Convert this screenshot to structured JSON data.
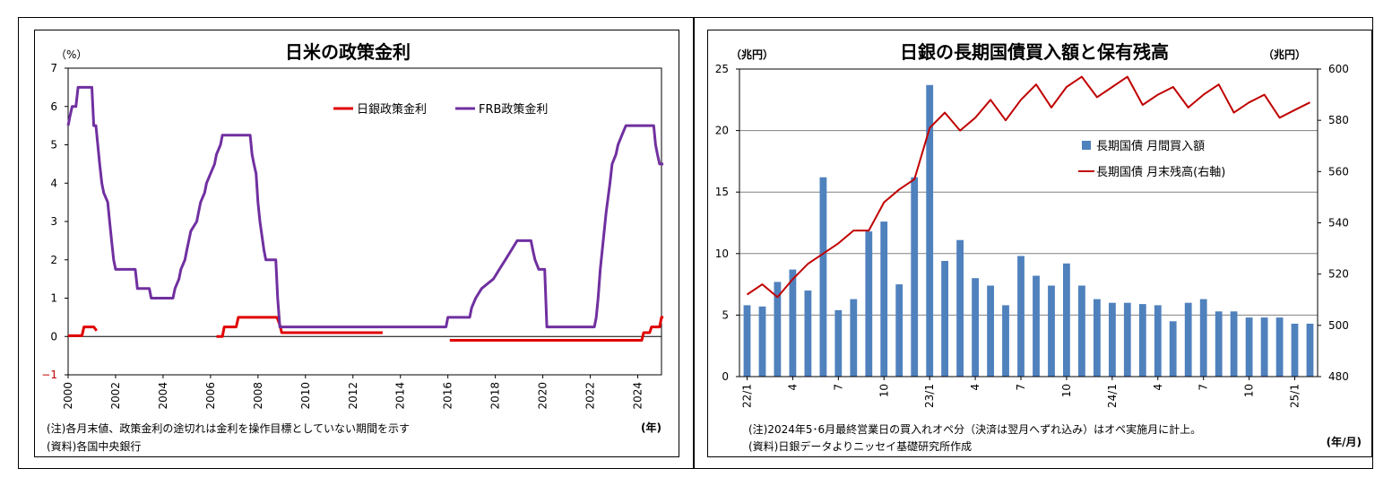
{
  "left_panel": {
    "unit_label": "（%）",
    "x_unit_label": "(年)",
    "note": "(注)各月末値、政策金利の途切れは金利を操作目標としていない期間を示す",
    "source": "(資料)各国中央銀行"
  },
  "right_panel": {
    "left_unit_label": "（兆円）",
    "right_unit_label": "（兆円）",
    "x_unit_label": "(年/月)",
    "note": "(注)2024年5･6月最終営業日の買入れオペ分（決済は翌月へずれ込み）はオペ実施月に計上。",
    "source": "(資料)日銀データよりニッセイ基礎研究所作成"
  },
  "chart_data": [
    {
      "type": "line",
      "title": "日米の政策金利",
      "ylabel": "%",
      "xlabel": "年",
      "xlim": [
        2000,
        2025
      ],
      "ylim": [
        -1,
        7
      ],
      "yticks": [
        -1,
        0,
        1,
        2,
        3,
        4,
        5,
        6,
        7
      ],
      "xticks": [
        2000,
        2002,
        2004,
        2006,
        2008,
        2010,
        2012,
        2014,
        2016,
        2018,
        2020,
        2022,
        2024
      ],
      "legend_position": "top-center",
      "grid": false,
      "series": [
        {
          "name": "日銀政策金利",
          "color": "#e00000",
          "segments": [
            [
              [
                2000.0,
                0.02
              ],
              [
                2000.58,
                0.02
              ],
              [
                2000.67,
                0.25
              ],
              [
                2001.08,
                0.25
              ],
              [
                2001.2,
                0.15
              ]
            ],
            [
              [
                2006.25,
                0.0
              ],
              [
                2006.5,
                0.0
              ],
              [
                2006.58,
                0.25
              ],
              [
                2007.08,
                0.25
              ],
              [
                2007.17,
                0.5
              ],
              [
                2008.8,
                0.5
              ],
              [
                2008.92,
                0.3
              ],
              [
                2009.0,
                0.1
              ],
              [
                2013.25,
                0.1
              ]
            ],
            [
              [
                2016.08,
                -0.1
              ],
              [
                2024.17,
                -0.1
              ],
              [
                2024.25,
                0.1
              ],
              [
                2024.5,
                0.1
              ],
              [
                2024.58,
                0.25
              ],
              [
                2024.92,
                0.25
              ],
              [
                2025.0,
                0.5
              ],
              [
                2025.08,
                0.5
              ]
            ]
          ]
        },
        {
          "name": "FRB政策金利",
          "color": "#7030a0",
          "segments": [
            [
              [
                2000.0,
                5.5
              ],
              [
                2000.08,
                5.75
              ],
              [
                2000.17,
                6.0
              ],
              [
                2000.33,
                6.0
              ],
              [
                2000.42,
                6.5
              ],
              [
                2001.0,
                6.5
              ],
              [
                2001.08,
                5.5
              ],
              [
                2001.17,
                5.5
              ],
              [
                2001.25,
                5.0
              ],
              [
                2001.33,
                4.5
              ],
              [
                2001.42,
                4.0
              ],
              [
                2001.5,
                3.75
              ],
              [
                2001.67,
                3.5
              ],
              [
                2001.75,
                3.0
              ],
              [
                2001.83,
                2.5
              ],
              [
                2001.92,
                2.0
              ],
              [
                2002.0,
                1.75
              ],
              [
                2002.83,
                1.75
              ],
              [
                2002.92,
                1.25
              ],
              [
                2003.42,
                1.25
              ],
              [
                2003.5,
                1.0
              ],
              [
                2004.42,
                1.0
              ],
              [
                2004.5,
                1.25
              ],
              [
                2004.67,
                1.5
              ],
              [
                2004.75,
                1.75
              ],
              [
                2004.92,
                2.0
              ],
              [
                2005.0,
                2.25
              ],
              [
                2005.17,
                2.75
              ],
              [
                2005.42,
                3.0
              ],
              [
                2005.5,
                3.25
              ],
              [
                2005.58,
                3.5
              ],
              [
                2005.75,
                3.75
              ],
              [
                2005.83,
                4.0
              ],
              [
                2006.0,
                4.25
              ],
              [
                2006.17,
                4.5
              ],
              [
                2006.25,
                4.75
              ],
              [
                2006.42,
                5.0
              ],
              [
                2006.5,
                5.25
              ],
              [
                2007.67,
                5.25
              ],
              [
                2007.75,
                4.75
              ],
              [
                2007.83,
                4.5
              ],
              [
                2007.92,
                4.25
              ],
              [
                2008.0,
                3.5
              ],
              [
                2008.08,
                3.0
              ],
              [
                2008.25,
                2.25
              ],
              [
                2008.33,
                2.0
              ],
              [
                2008.75,
                2.0
              ],
              [
                2008.83,
                1.0
              ],
              [
                2008.92,
                0.25
              ],
              [
                2015.92,
                0.25
              ],
              [
                2016.0,
                0.5
              ],
              [
                2016.92,
                0.5
              ],
              [
                2017.0,
                0.75
              ],
              [
                2017.17,
                1.0
              ],
              [
                2017.42,
                1.25
              ],
              [
                2017.92,
                1.5
              ],
              [
                2018.17,
                1.75
              ],
              [
                2018.42,
                2.0
              ],
              [
                2018.67,
                2.25
              ],
              [
                2018.92,
                2.5
              ],
              [
                2019.5,
                2.5
              ],
              [
                2019.58,
                2.25
              ],
              [
                2019.67,
                2.0
              ],
              [
                2019.83,
                1.75
              ],
              [
                2020.08,
                1.75
              ],
              [
                2020.17,
                0.25
              ],
              [
                2022.17,
                0.25
              ],
              [
                2022.25,
                0.5
              ],
              [
                2022.33,
                1.0
              ],
              [
                2022.42,
                1.75
              ],
              [
                2022.67,
                3.25
              ],
              [
                2022.83,
                4.0
              ],
              [
                2022.92,
                4.5
              ],
              [
                2023.08,
                4.75
              ],
              [
                2023.17,
                5.0
              ],
              [
                2023.33,
                5.25
              ],
              [
                2023.5,
                5.5
              ],
              [
                2024.67,
                5.5
              ],
              [
                2024.75,
                5.0
              ],
              [
                2024.83,
                4.75
              ],
              [
                2024.92,
                4.5
              ],
              [
                2025.08,
                4.5
              ]
            ]
          ]
        }
      ]
    },
    {
      "type": "bar",
      "title": "日銀の長期国債買入額と保有残高",
      "ylabel": "兆円",
      "y2label": "兆円",
      "xlabel": "年/月",
      "ylim": [
        0,
        25
      ],
      "yticks": [
        0,
        5,
        10,
        15,
        20,
        25
      ],
      "y2lim": [
        480,
        600
      ],
      "y2ticks": [
        480,
        500,
        520,
        540,
        560,
        580,
        600
      ],
      "grid": true,
      "legend_position": "center-right",
      "categories": [
        "22/1",
        "2",
        "3",
        "4",
        "5",
        "6",
        "7",
        "8",
        "9",
        "10",
        "11",
        "12",
        "23/1",
        "2",
        "3",
        "4",
        "5",
        "6",
        "7",
        "8",
        "9",
        "10",
        "11",
        "12",
        "24/1",
        "2",
        "3",
        "4",
        "5",
        "6",
        "7",
        "8",
        "9",
        "10",
        "11",
        "12",
        "25/1",
        "2"
      ],
      "tick_labels": [
        "22/1",
        "4",
        "7",
        "10",
        "23/1",
        "4",
        "7",
        "10",
        "24/1",
        "4",
        "7",
        "10",
        "25/1"
      ],
      "tick_indices": [
        0,
        3,
        6,
        9,
        12,
        15,
        18,
        21,
        24,
        27,
        30,
        33,
        36
      ],
      "series": [
        {
          "name": "長期国債 月間買入額",
          "kind": "bar",
          "axis": "left",
          "color": "#4f81bd",
          "values": [
            5.8,
            5.7,
            7.7,
            8.7,
            7.0,
            16.2,
            5.4,
            6.3,
            11.8,
            12.6,
            7.5,
            16.2,
            23.7,
            9.4,
            11.1,
            8.0,
            7.4,
            5.8,
            9.8,
            8.2,
            7.4,
            9.2,
            7.4,
            6.3,
            6.0,
            6.0,
            5.9,
            5.8,
            4.5,
            6.0,
            6.3,
            5.3,
            5.3,
            4.8,
            4.8,
            4.8,
            4.3,
            4.3
          ]
        },
        {
          "name": "長期国債 月末残高(右軸)",
          "kind": "line",
          "axis": "right",
          "color": "#c00000",
          "values": [
            512,
            516,
            511,
            518,
            524,
            528,
            532,
            537,
            537,
            548,
            553,
            557,
            577,
            583,
            576,
            581,
            588,
            580,
            588,
            594,
            585,
            593,
            597,
            589,
            593,
            597,
            586,
            590,
            593,
            585,
            590,
            594,
            583,
            587,
            590,
            581,
            584,
            587
          ]
        }
      ]
    }
  ]
}
